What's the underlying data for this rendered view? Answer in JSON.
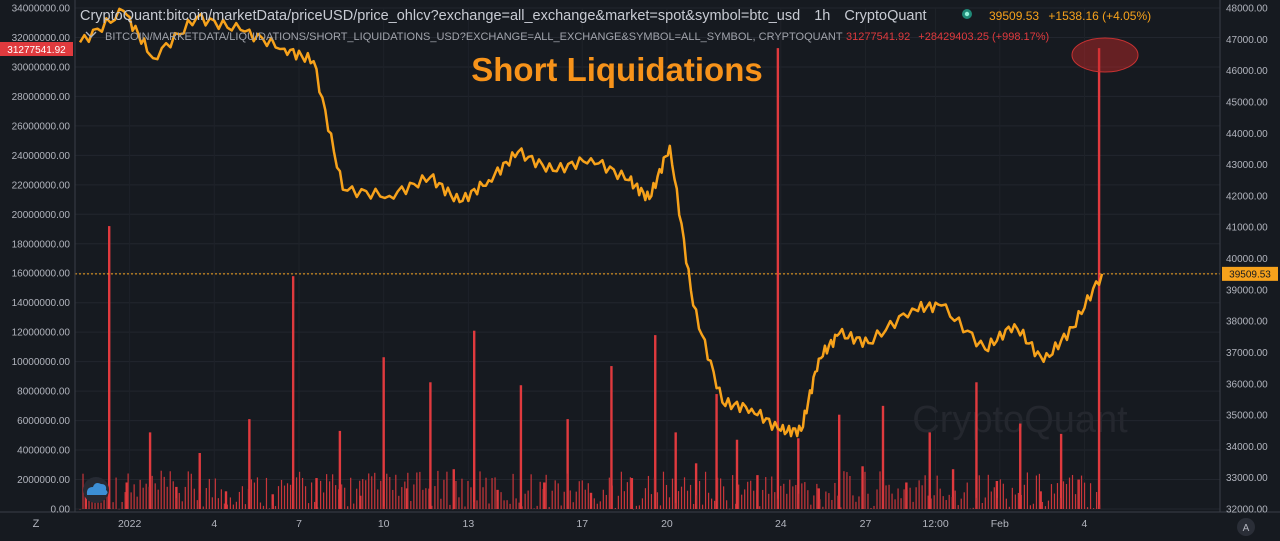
{
  "header": {
    "main_series": "CryptoQuant:bitcoin/marketData/priceUSD/price_ohlcv?exchange=all_exchange&market=spot&symbol=btc_usd",
    "interval": "1h",
    "provider": "CryptoQuant",
    "main_last": "39509.53",
    "main_change": "+1538.16 (+4.05%)",
    "sub_series": "BITCOIN/MARKETDATA/LIQUIDATIONS/SHORT_LIQUIDATIONS_USD?EXCHANGE=ALL_EXCHANGE&SYMBOL=ALL_SYMBOL, CRYPTOQUANT",
    "sub_last": "31277541.92",
    "sub_change": "+28429403.25 (+998.17%)"
  },
  "annotation": "Short Liquidations",
  "watermark": "CryptoQuant",
  "left_axis_last_label": "31277541.92",
  "right_axis_last_label": "39509.53",
  "bottom_bar": {
    "zoom_label": "Z",
    "arrow_label": "A"
  },
  "colors": {
    "background": "#161a20",
    "price_line": "#f7a21b",
    "liquidation_bars": "#e03a3e",
    "annotation": "#f7931a",
    "text": "#b2b5be"
  },
  "chart_data": {
    "type": "line",
    "x_tick_labels": [
      "2022",
      "4",
      "7",
      "10",
      "13",
      "17",
      "20",
      "24",
      "27",
      "12:00",
      "Feb",
      "4"
    ],
    "y_left": {
      "ylim": [
        0,
        34000000
      ],
      "ticks": [
        "34000000.00",
        "32000000.00",
        "30000000.00",
        "28000000.00",
        "26000000.00",
        "24000000.00",
        "22000000.00",
        "20000000.00",
        "18000000.00",
        "16000000.00",
        "14000000.00",
        "12000000.00",
        "10000000.00",
        "8000000.00",
        "6000000.00",
        "4000000.00",
        "2000000.00",
        "0.00"
      ]
    },
    "y_right": {
      "ylim": [
        32000,
        48000
      ],
      "ticks": [
        "48000.00",
        "47000.00",
        "46000.00",
        "45000.00",
        "44000.00",
        "43000.00",
        "42000.00",
        "41000.00",
        "40000.00",
        "39000.00",
        "38000.00",
        "37000.00",
        "36000.00",
        "35000.00",
        "34000.00",
        "33000.00",
        "32000.00"
      ]
    },
    "series": [
      {
        "axis": "right",
        "style": "line",
        "x": [
          0,
          1.5,
          2.5,
          4,
          5.5,
          7,
          8,
          9,
          10.6,
          12,
          13,
          14,
          15,
          16.2,
          17.5,
          18.8,
          19.5,
          20.2,
          21,
          22,
          23,
          24,
          24.7,
          25.3,
          26,
          27,
          28.5,
          29.5,
          31,
          32,
          33,
          34,
          35
        ],
        "values": [
          46900,
          47900,
          46400,
          47700,
          47300,
          46700,
          46300,
          42200,
          42000,
          42600,
          41800,
          42500,
          43400,
          42800,
          43200,
          42500,
          41900,
          43600,
          38500,
          35400,
          35200,
          34500,
          34500,
          36800,
          37600,
          37300,
          38400,
          38500,
          37100,
          37900,
          36700,
          37800,
          39509.53
        ]
      },
      {
        "axis": "left",
        "style": "bar",
        "x": [
          0.2,
          1,
          1.6,
          2.4,
          3.3,
          4.1,
          5,
          5.8,
          6.6,
          7.3,
          8.1,
          8.9,
          9.6,
          10.4,
          11.2,
          12,
          12.8,
          13.5,
          14.3,
          15.1,
          15.9,
          16.7,
          17.5,
          18.2,
          18.9,
          19.7,
          20.4,
          21.1,
          21.8,
          22.5,
          23.2,
          23.9,
          24.6,
          25.3,
          26,
          26.8,
          27.5,
          28.3,
          29.1,
          29.9,
          30.7,
          31.4,
          32.2,
          32.9,
          33.6,
          34.2,
          34.9
        ],
        "values": [
          1200000,
          19200000,
          1800000,
          5200000,
          1500000,
          3800000,
          1200000,
          6100000,
          1000000,
          15800000,
          2100000,
          5300000,
          900000,
          10300000,
          1400000,
          8600000,
          2700000,
          12100000,
          1300000,
          8400000,
          1800000,
          6100000,
          1100000,
          9700000,
          2100000,
          11800000,
          5200000,
          3100000,
          7800000,
          4700000,
          2300000,
          31277541.92,
          4800000,
          1400000,
          6400000,
          2900000,
          7000000,
          1800000,
          5200000,
          2700000,
          8600000,
          1900000,
          5800000,
          1200000,
          5100000,
          2000000,
          31277541.92
        ]
      }
    ]
  }
}
